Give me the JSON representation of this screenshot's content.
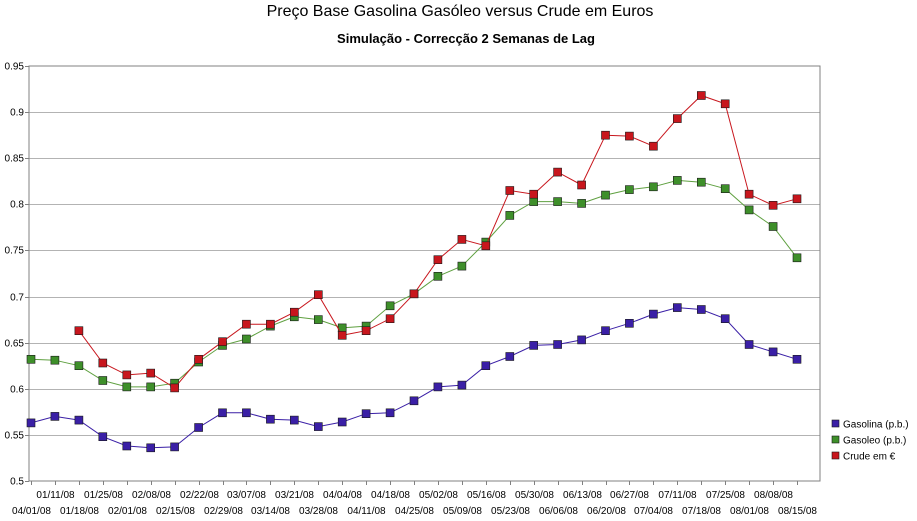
{
  "chart_data": {
    "type": "line",
    "title": "Preço Base Gasolina Gasóleo versus Crude em Euros",
    "subtitle": "Simulação - Correcção 2 Semanas de Lag",
    "xlabel": "",
    "ylabel": "",
    "ylim": [
      0.5,
      0.95
    ],
    "y_ticks": [
      "0.5",
      "0.55",
      "0.6",
      "0.65",
      "0.7",
      "0.75",
      "0.8",
      "0.85",
      "0.9",
      "0.95"
    ],
    "grid": true,
    "legend_position": "right",
    "categories": [
      "04/01/08",
      "01/11/08",
      "01/18/08",
      "01/25/08",
      "02/01/08",
      "02/08/08",
      "02/15/08",
      "02/22/08",
      "02/29/08",
      "03/07/08",
      "03/14/08",
      "03/21/08",
      "03/28/08",
      "04/04/08",
      "04/11/08",
      "04/18/08",
      "04/25/08",
      "05/02/08",
      "05/09/08",
      "05/16/08",
      "05/23/08",
      "05/30/08",
      "06/06/08",
      "06/13/08",
      "06/20/08",
      "06/27/08",
      "07/04/08",
      "07/11/08",
      "07/18/08",
      "07/25/08",
      "08/01/08",
      "08/08/08",
      "08/15/08"
    ],
    "series": [
      {
        "name": "Gasolina (p.b.)",
        "color": "#3a1fa6",
        "line_color": "#3a1fa6",
        "values": [
          0.563,
          0.57,
          0.566,
          0.548,
          0.538,
          0.536,
          0.537,
          0.558,
          0.574,
          0.574,
          0.567,
          0.566,
          0.559,
          0.564,
          0.573,
          0.574,
          0.587,
          0.602,
          0.604,
          0.625,
          0.635,
          0.647,
          0.648,
          0.653,
          0.663,
          0.671,
          0.681,
          0.688,
          0.686,
          0.676,
          0.648,
          0.64,
          0.632
        ]
      },
      {
        "name": "Gasoleo (p.b.)",
        "color": "#3e8f2a",
        "line_color": "#5fa040",
        "values": [
          0.632,
          0.631,
          0.625,
          0.609,
          0.602,
          0.602,
          0.606,
          0.629,
          0.647,
          0.654,
          0.668,
          0.678,
          0.675,
          0.666,
          0.668,
          0.69,
          0.703,
          0.722,
          0.733,
          0.759,
          0.788,
          0.803,
          0.803,
          0.801,
          0.81,
          0.816,
          0.819,
          0.826,
          0.824,
          0.817,
          0.794,
          0.776,
          0.742
        ]
      },
      {
        "name": "Crude em €",
        "color": "#c8161d",
        "line_color": "#c8161d",
        "values": [
          null,
          null,
          0.663,
          0.628,
          0.615,
          0.617,
          0.601,
          0.632,
          0.651,
          0.67,
          0.67,
          0.683,
          0.702,
          0.658,
          0.663,
          0.676,
          0.703,
          0.74,
          0.762,
          0.755,
          0.815,
          0.811,
          0.835,
          0.821,
          0.875,
          0.874,
          0.863,
          0.893,
          0.918,
          0.909,
          0.811,
          0.799,
          0.806
        ]
      }
    ]
  }
}
